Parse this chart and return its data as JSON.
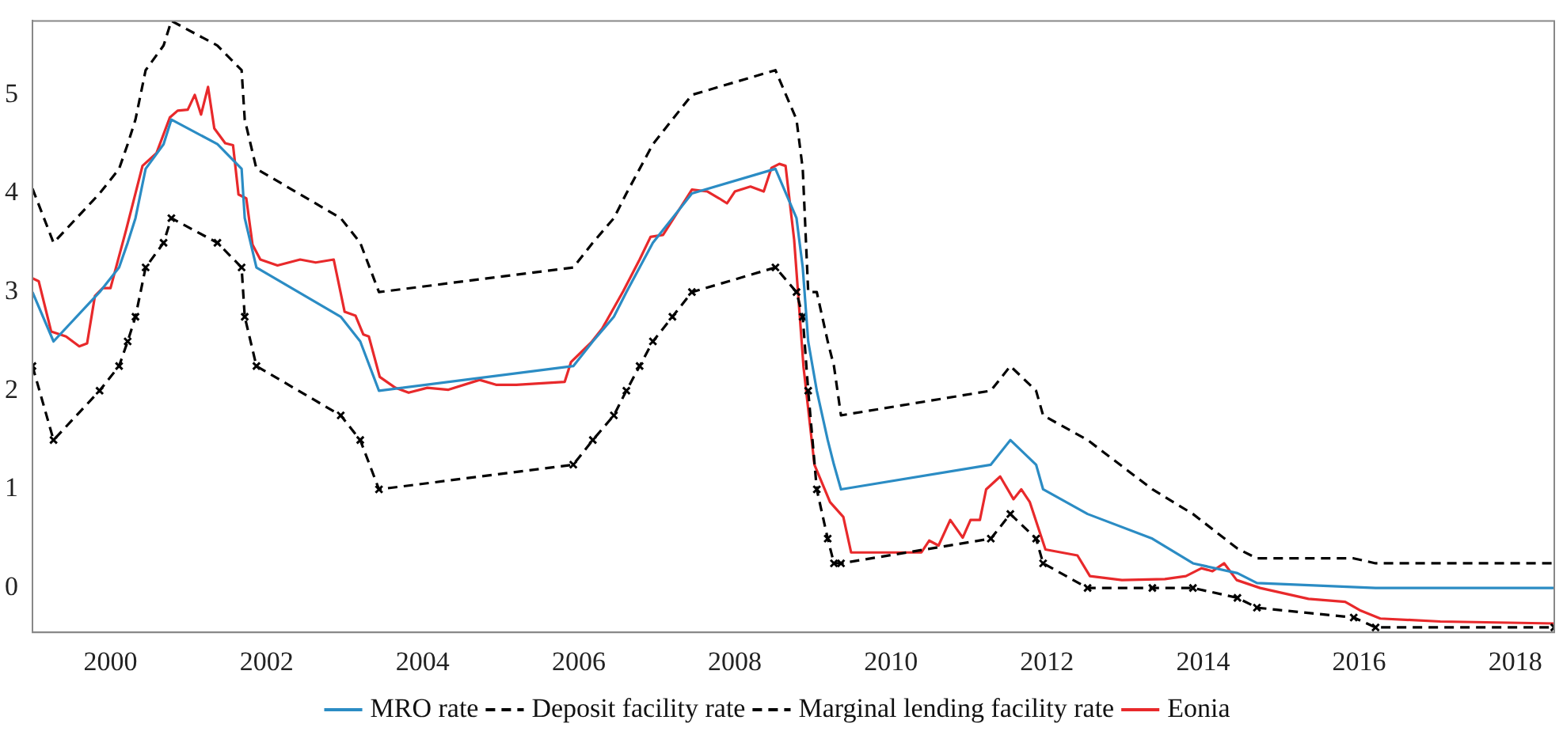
{
  "chart_data": {
    "type": "line",
    "xlim": [
      1999,
      2018.5
    ],
    "xticks": [
      2000,
      2002,
      2004,
      2006,
      2008,
      2010,
      2012,
      2014,
      2016,
      2018
    ],
    "ylim": [
      -0.45,
      5.75
    ],
    "yticks": [
      0,
      1,
      2,
      3,
      4,
      5
    ],
    "grid": false,
    "legend": "bottom",
    "series": [
      {
        "name": "MRO rate",
        "color": "#2b8cc4",
        "line_style": "solid",
        "marker": "none",
        "x": [
          1999.0,
          1999.27,
          1999.86,
          2000.11,
          2000.22,
          2000.32,
          2000.45,
          2000.68,
          2000.78,
          2001.37,
          2001.68,
          2001.72,
          2001.87,
          2002.95,
          2003.2,
          2003.44,
          2005.93,
          2006.18,
          2006.45,
          2006.61,
          2006.78,
          2006.95,
          2007.2,
          2007.45,
          2008.52,
          2008.79,
          2008.87,
          2008.94,
          2009.05,
          2009.19,
          2009.27,
          2009.36,
          2011.28,
          2011.53,
          2011.86,
          2011.95,
          2012.52,
          2013.35,
          2013.87,
          2014.44,
          2014.69,
          2016.21,
          2018.5
        ],
        "values": [
          3.0,
          2.5,
          3.0,
          3.25,
          3.5,
          3.75,
          4.25,
          4.5,
          4.75,
          4.5,
          4.25,
          3.75,
          3.25,
          2.75,
          2.5,
          2.0,
          2.25,
          2.5,
          2.75,
          3.0,
          3.25,
          3.5,
          3.75,
          4.0,
          4.25,
          3.75,
          3.25,
          2.5,
          2.0,
          1.5,
          1.25,
          1.0,
          1.25,
          1.5,
          1.25,
          1.0,
          0.75,
          0.5,
          0.25,
          0.15,
          0.05,
          0.0,
          0.0
        ]
      },
      {
        "name": "Deposit facility rate",
        "color": "#000000",
        "line_style": "dashed",
        "marker": "cross",
        "x": [
          1999.0,
          1999.27,
          1999.86,
          2000.11,
          2000.22,
          2000.32,
          2000.45,
          2000.68,
          2000.78,
          2001.37,
          2001.68,
          2001.72,
          2001.87,
          2002.95,
          2003.2,
          2003.44,
          2005.93,
          2006.18,
          2006.45,
          2006.61,
          2006.78,
          2006.95,
          2007.2,
          2007.45,
          2008.52,
          2008.79,
          2008.87,
          2008.94,
          2009.05,
          2009.19,
          2009.27,
          2009.36,
          2011.28,
          2011.53,
          2011.86,
          2011.95,
          2012.52,
          2013.35,
          2013.87,
          2014.44,
          2014.69,
          2015.93,
          2016.21,
          2018.5
        ],
        "values": [
          2.25,
          1.5,
          2.0,
          2.25,
          2.5,
          2.75,
          3.25,
          3.5,
          3.75,
          3.5,
          3.25,
          2.75,
          2.25,
          1.75,
          1.5,
          1.0,
          1.25,
          1.5,
          1.75,
          2.0,
          2.25,
          2.5,
          2.75,
          3.0,
          3.25,
          3.0,
          2.75,
          2.0,
          1.0,
          0.5,
          0.25,
          0.25,
          0.5,
          0.75,
          0.5,
          0.25,
          0.0,
          0.0,
          0.0,
          -0.1,
          -0.2,
          -0.3,
          -0.4,
          -0.4
        ]
      },
      {
        "name": "Marginal lending facility rate",
        "color": "#000000",
        "line_style": "dashed",
        "marker": "none",
        "x": [
          1999.0,
          1999.27,
          1999.86,
          2000.11,
          2000.22,
          2000.32,
          2000.45,
          2000.68,
          2000.78,
          2001.37,
          2001.68,
          2001.72,
          2001.87,
          2002.95,
          2003.2,
          2003.44,
          2005.93,
          2006.18,
          2006.45,
          2006.61,
          2006.78,
          2006.95,
          2007.2,
          2007.45,
          2008.52,
          2008.79,
          2008.87,
          2008.94,
          2009.05,
          2009.19,
          2009.27,
          2009.36,
          2011.28,
          2011.53,
          2011.86,
          2011.95,
          2012.52,
          2013.35,
          2013.87,
          2014.44,
          2014.69,
          2015.93,
          2016.21,
          2018.5
        ],
        "values": [
          4.05,
          3.5,
          4.0,
          4.25,
          4.5,
          4.75,
          5.25,
          5.5,
          5.75,
          5.5,
          5.25,
          4.75,
          4.25,
          3.75,
          3.5,
          3.0,
          3.25,
          3.5,
          3.75,
          4.0,
          4.25,
          4.5,
          4.75,
          5.0,
          5.25,
          4.75,
          4.25,
          3.0,
          3.0,
          2.5,
          2.25,
          1.75,
          2.0,
          2.25,
          2.0,
          1.75,
          1.5,
          1.0,
          0.75,
          0.4,
          0.3,
          0.3,
          0.25,
          0.25
        ]
      },
      {
        "name": "Eonia",
        "color": "#e8292b",
        "line_style": "solid",
        "marker": "none",
        "x": [
          1999.0,
          1999.08,
          1999.24,
          1999.43,
          1999.6,
          1999.7,
          1999.8,
          1999.9,
          2000.0,
          2000.2,
          2000.41,
          2000.59,
          2000.76,
          2000.86,
          2000.99,
          2001.08,
          2001.16,
          2001.25,
          2001.33,
          2001.47,
          2001.57,
          2001.64,
          2001.74,
          2001.82,
          2001.92,
          2002.14,
          2002.43,
          2002.63,
          2002.86,
          2003.0,
          2003.14,
          2003.24,
          2003.31,
          2003.45,
          2003.65,
          2003.82,
          2004.06,
          2004.33,
          2004.73,
          2004.94,
          2005.2,
          2005.82,
          2005.9,
          2006.16,
          2006.3,
          2006.57,
          2006.78,
          2006.92,
          2007.08,
          2007.25,
          2007.45,
          2007.65,
          2007.8,
          2007.9,
          2008.0,
          2008.2,
          2008.37,
          2008.47,
          2008.57,
          2008.65,
          2008.76,
          2008.88,
          2009.02,
          2009.22,
          2009.39,
          2009.49,
          2009.9,
          2010.39,
          2010.49,
          2010.61,
          2010.76,
          2010.92,
          2011.02,
          2011.14,
          2011.22,
          2011.4,
          2011.57,
          2011.67,
          2011.78,
          2011.98,
          2012.39,
          2012.55,
          2012.96,
          2013.51,
          2013.78,
          2013.98,
          2014.12,
          2014.27,
          2014.43,
          2014.73,
          2015.35,
          2015.82,
          2016.02,
          2016.27,
          2017.04,
          2018.5
        ],
        "values": [
          3.14,
          3.11,
          2.6,
          2.55,
          2.45,
          2.48,
          2.96,
          3.04,
          3.04,
          3.63,
          4.28,
          4.41,
          4.77,
          4.84,
          4.85,
          5.0,
          4.8,
          5.08,
          4.66,
          4.51,
          4.49,
          3.99,
          3.95,
          3.48,
          3.33,
          3.27,
          3.33,
          3.3,
          3.33,
          2.8,
          2.76,
          2.57,
          2.55,
          2.14,
          2.03,
          1.98,
          2.03,
          2.01,
          2.11,
          2.06,
          2.06,
          2.09,
          2.29,
          2.49,
          2.63,
          3.01,
          3.33,
          3.56,
          3.58,
          3.79,
          4.04,
          4.02,
          3.95,
          3.9,
          4.02,
          4.07,
          4.02,
          4.26,
          4.3,
          4.28,
          3.53,
          2.24,
          1.25,
          0.87,
          0.72,
          0.36,
          0.36,
          0.36,
          0.48,
          0.43,
          0.69,
          0.51,
          0.69,
          0.69,
          1.0,
          1.13,
          0.9,
          1.0,
          0.87,
          0.39,
          0.33,
          0.12,
          0.08,
          0.09,
          0.12,
          0.2,
          0.17,
          0.25,
          0.08,
          0.0,
          -0.11,
          -0.14,
          -0.23,
          -0.31,
          -0.34,
          -0.36
        ]
      }
    ]
  }
}
